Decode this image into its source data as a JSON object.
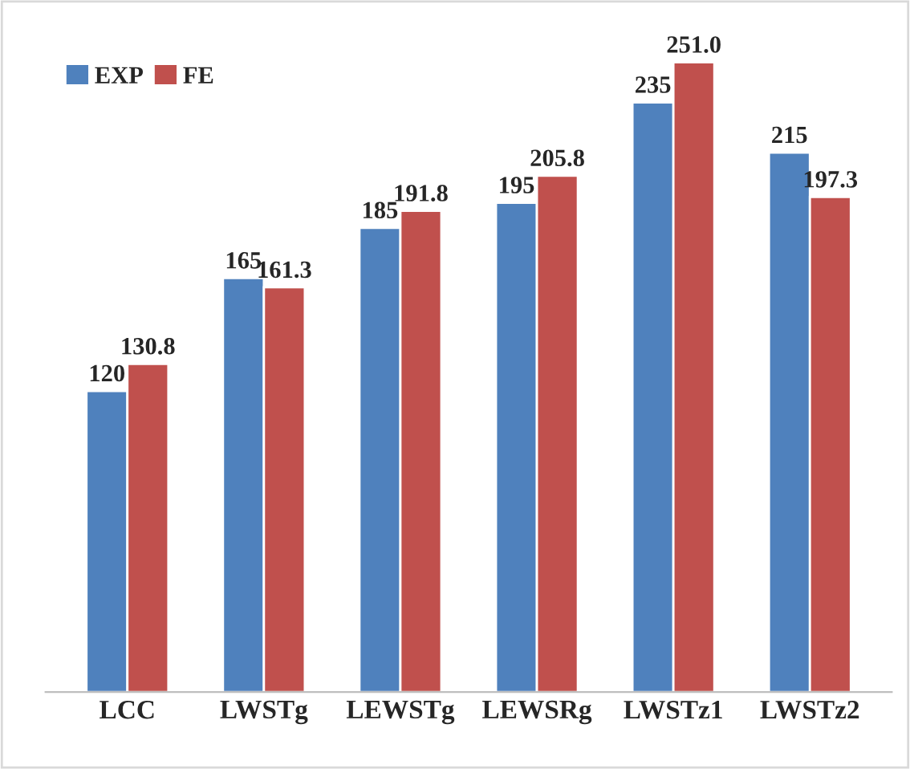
{
  "chart_data": {
    "type": "bar",
    "categories": [
      "LCC",
      "LWSTg",
      "LEWSTg",
      "LEWSRg",
      "LWSTz1",
      "LWSTz2"
    ],
    "series": [
      {
        "name": "EXP",
        "color": "#4f81bd",
        "values": [
          120,
          165,
          185,
          195,
          235,
          215
        ],
        "value_labels": [
          "120",
          "165",
          "185",
          "195",
          "235",
          "215"
        ]
      },
      {
        "name": "FE",
        "color": "#c0504d",
        "values": [
          130.8,
          161.3,
          191.8,
          205.8,
          251.0,
          197.3
        ],
        "value_labels": [
          "130.8",
          "161.3",
          "191.8",
          "205.8",
          "251.0",
          "197.3"
        ]
      }
    ],
    "legend": "top left",
    "grid": false
  }
}
